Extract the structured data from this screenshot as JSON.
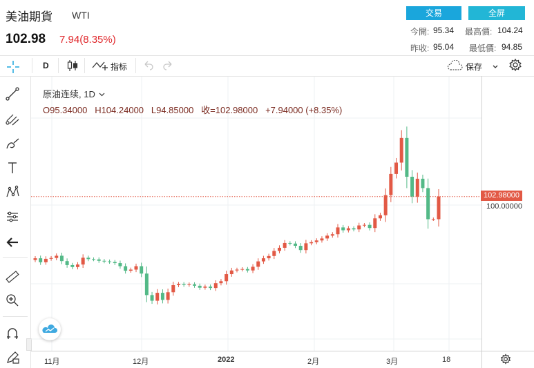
{
  "header": {
    "name": "美油期貨",
    "code": "WTI",
    "price": "102.98",
    "change": "7.94(8.35%)",
    "trade_label": "交易",
    "fullscreen_label": "全屏",
    "stats": [
      {
        "label": "今開:",
        "value": "95.34"
      },
      {
        "label": "最高價:",
        "value": "104.24"
      },
      {
        "label": "昨收:",
        "value": "95.04"
      },
      {
        "label": "最低價:",
        "value": "94.85"
      }
    ]
  },
  "toolbar": {
    "interval": "D",
    "indicators_label": "指标",
    "save_label": "保存"
  },
  "legend": {
    "symbol": "原油连续, 1D",
    "o": "O95.34000",
    "h": "H104.24000",
    "l": "L94.85000",
    "c": "收=102.98000",
    "chg": "+7.94000 (+8.35%)"
  },
  "colors": {
    "up": "#e25945",
    "down": "#53b987",
    "accent": "#1aa6dc"
  },
  "chart_data": {
    "type": "candlestick",
    "last_price_label": "102.98000",
    "y_tick_label": "100.00000",
    "x_ticks": [
      "11月",
      "12月",
      "2022",
      "2月",
      "3月",
      "18"
    ],
    "candles_close": [
      81.2,
      79.8,
      81.0,
      81.3,
      82.1,
      80.2,
      78.8,
      78.1,
      79.0,
      81.4,
      80.9,
      80.8,
      80.3,
      80.1,
      79.9,
      79.5,
      78.4,
      76.8,
      77.2,
      78.4,
      75.8,
      68.2,
      66.2,
      69.0,
      66.5,
      69.2,
      71.7,
      72.1,
      71.8,
      72.0,
      71.5,
      70.8,
      71.2,
      70.7,
      72.4,
      73.1,
      75.6,
      76.9,
      77.2,
      77.4,
      76.9,
      78.2,
      80.1,
      81.2,
      82.0,
      83.8,
      84.9,
      86.6,
      86.4,
      85.6,
      84.1,
      86.5,
      86.9,
      87.5,
      88.2,
      89.2,
      89.7,
      92.1,
      91.1,
      91.8,
      91.4,
      92.8,
      93.0,
      91.9,
      95.3,
      96.4,
      103.5,
      111.0,
      115.0,
      123.7,
      110.0,
      103.0,
      109.3,
      106.0,
      95.0,
      95.0,
      103.0
    ]
  }
}
